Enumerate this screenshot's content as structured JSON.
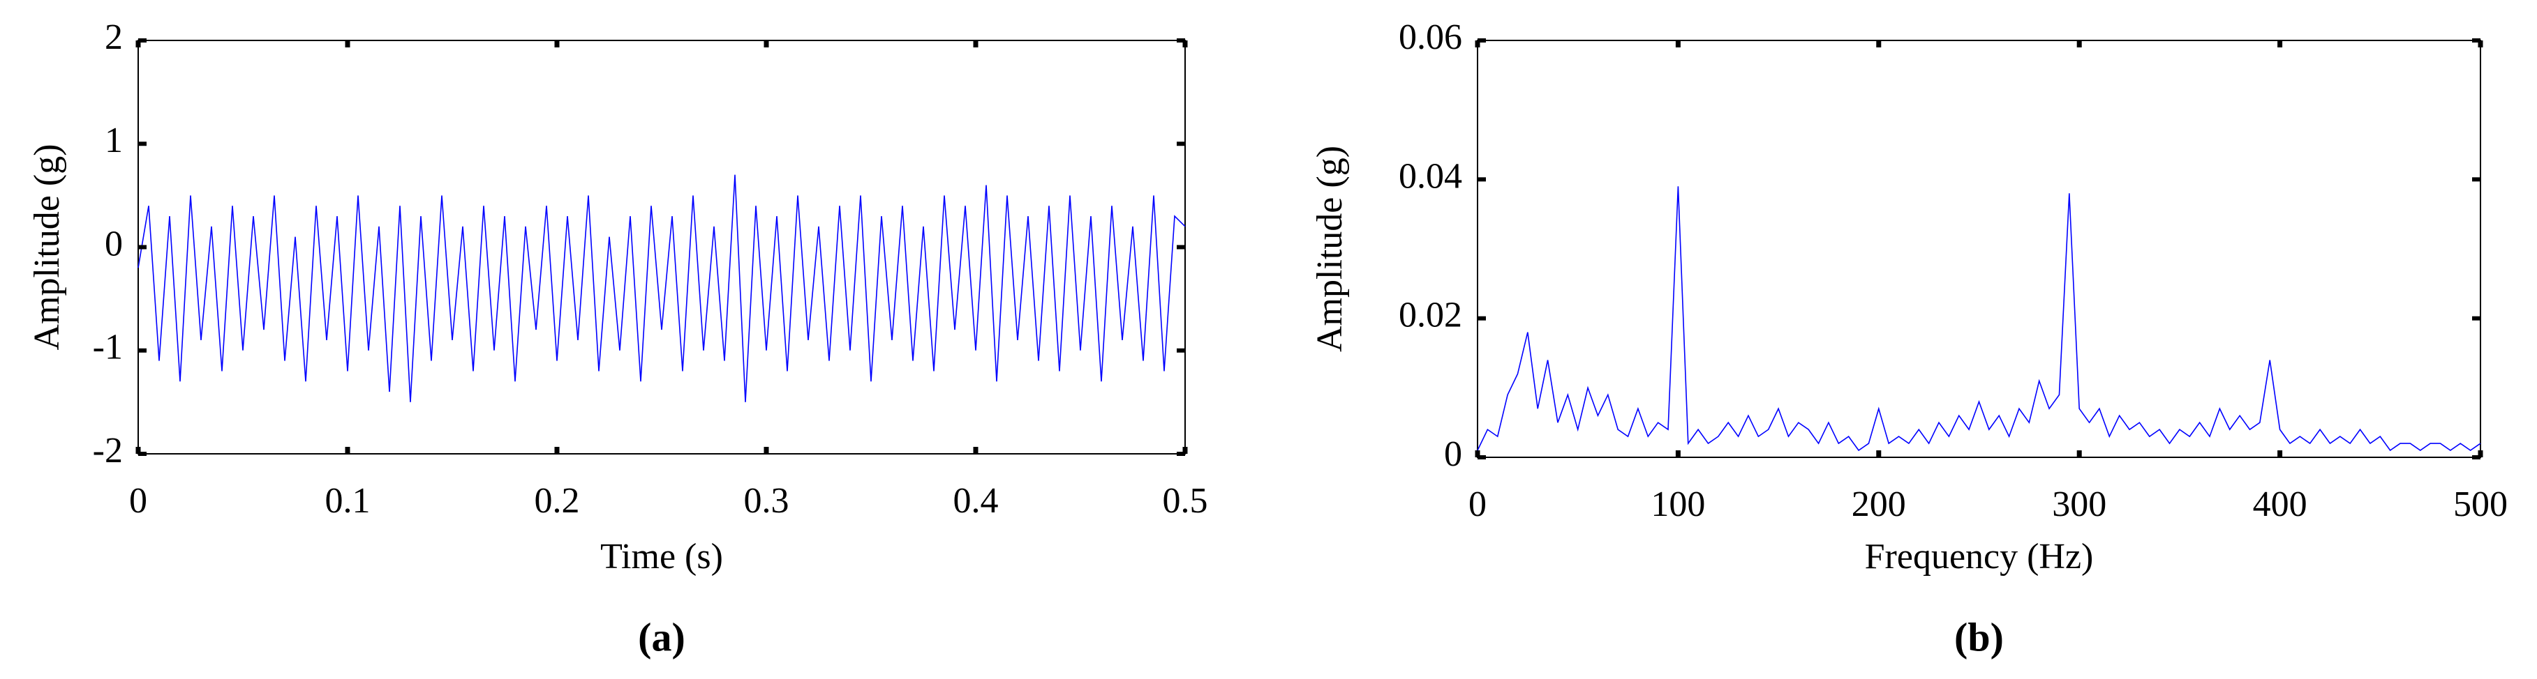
{
  "chart_data": [
    {
      "type": "line",
      "caption": "(a)",
      "xlabel": "Time (s)",
      "ylabel": "Amplitude (g)",
      "color": "#0000ff",
      "xlim": [
        0,
        0.5
      ],
      "ylim": [
        -2,
        2
      ],
      "xticks": [
        0,
        0.1,
        0.2,
        0.3,
        0.4,
        0.5
      ],
      "yticks": [
        -2,
        -1,
        0,
        1,
        2
      ],
      "grid": false,
      "x": [
        0,
        0.005,
        0.01,
        0.015,
        0.02,
        0.025,
        0.03,
        0.035,
        0.04,
        0.045,
        0.05,
        0.055,
        0.06,
        0.065,
        0.07,
        0.075,
        0.08,
        0.085,
        0.09,
        0.095,
        0.1,
        0.105,
        0.11,
        0.115,
        0.12,
        0.125,
        0.13,
        0.135,
        0.14,
        0.145,
        0.15,
        0.155,
        0.16,
        0.165,
        0.17,
        0.175,
        0.18,
        0.185,
        0.19,
        0.195,
        0.2,
        0.205,
        0.21,
        0.215,
        0.22,
        0.225,
        0.23,
        0.235,
        0.24,
        0.245,
        0.25,
        0.255,
        0.26,
        0.265,
        0.27,
        0.275,
        0.28,
        0.285,
        0.29,
        0.295,
        0.3,
        0.305,
        0.31,
        0.315,
        0.32,
        0.325,
        0.33,
        0.335,
        0.34,
        0.345,
        0.35,
        0.355,
        0.36,
        0.365,
        0.37,
        0.375,
        0.38,
        0.385,
        0.39,
        0.395,
        0.4,
        0.405,
        0.41,
        0.415,
        0.42,
        0.425,
        0.43,
        0.435,
        0.44,
        0.445,
        0.45,
        0.455,
        0.46,
        0.465,
        0.47,
        0.475,
        0.48,
        0.485,
        0.49,
        0.495,
        0.5
      ],
      "values": [
        -0.2,
        0.4,
        -1.1,
        0.3,
        -1.3,
        0.5,
        -0.9,
        0.2,
        -1.2,
        0.4,
        -1.0,
        0.3,
        -0.8,
        0.5,
        -1.1,
        0.1,
        -1.3,
        0.4,
        -0.9,
        0.3,
        -1.2,
        0.5,
        -1.0,
        0.2,
        -1.4,
        0.4,
        -1.5,
        0.3,
        -1.1,
        0.5,
        -0.9,
        0.2,
        -1.2,
        0.4,
        -1.0,
        0.3,
        -1.3,
        0.2,
        -0.8,
        0.4,
        -1.1,
        0.3,
        -0.9,
        0.5,
        -1.2,
        0.1,
        -1.0,
        0.3,
        -1.3,
        0.4,
        -0.8,
        0.3,
        -1.2,
        0.5,
        -1.0,
        0.2,
        -1.1,
        0.7,
        -1.5,
        0.4,
        -1.0,
        0.3,
        -1.2,
        0.5,
        -0.9,
        0.2,
        -1.1,
        0.4,
        -1.0,
        0.5,
        -1.3,
        0.3,
        -0.9,
        0.4,
        -1.1,
        0.2,
        -1.2,
        0.5,
        -0.8,
        0.4,
        -1.0,
        0.6,
        -1.3,
        0.5,
        -0.9,
        0.3,
        -1.1,
        0.4,
        -1.2,
        0.5,
        -1.0,
        0.3,
        -1.3,
        0.4,
        -0.9,
        0.2,
        -1.1,
        0.5,
        -1.2,
        0.3,
        0.2
      ]
    },
    {
      "type": "line",
      "caption": "(b)",
      "xlabel": "Frequency (Hz)",
      "ylabel": "Amplitude (g)",
      "color": "#0000ff",
      "xlim": [
        0,
        500
      ],
      "ylim": [
        0,
        0.06
      ],
      "xticks": [
        0,
        100,
        200,
        300,
        400,
        500
      ],
      "yticks": [
        0,
        0.02,
        0.04,
        0.06
      ],
      "grid": false,
      "x": [
        0,
        5,
        10,
        15,
        20,
        25,
        30,
        35,
        40,
        45,
        50,
        55,
        60,
        65,
        70,
        75,
        80,
        85,
        90,
        95,
        100,
        105,
        110,
        115,
        120,
        125,
        130,
        135,
        140,
        145,
        150,
        155,
        160,
        165,
        170,
        175,
        180,
        185,
        190,
        195,
        200,
        205,
        210,
        215,
        220,
        225,
        230,
        235,
        240,
        245,
        250,
        255,
        260,
        265,
        270,
        275,
        280,
        285,
        290,
        295,
        300,
        305,
        310,
        315,
        320,
        325,
        330,
        335,
        340,
        345,
        350,
        355,
        360,
        365,
        370,
        375,
        380,
        385,
        390,
        395,
        400,
        405,
        410,
        415,
        420,
        425,
        430,
        435,
        440,
        445,
        450,
        455,
        460,
        465,
        470,
        475,
        480,
        485,
        490,
        495,
        500
      ],
      "values": [
        0.001,
        0.004,
        0.003,
        0.009,
        0.012,
        0.018,
        0.007,
        0.014,
        0.005,
        0.009,
        0.004,
        0.01,
        0.006,
        0.009,
        0.004,
        0.003,
        0.007,
        0.003,
        0.005,
        0.004,
        0.039,
        0.002,
        0.004,
        0.002,
        0.003,
        0.005,
        0.003,
        0.006,
        0.003,
        0.004,
        0.007,
        0.003,
        0.005,
        0.004,
        0.002,
        0.005,
        0.002,
        0.003,
        0.001,
        0.002,
        0.007,
        0.002,
        0.003,
        0.002,
        0.004,
        0.002,
        0.005,
        0.003,
        0.006,
        0.004,
        0.008,
        0.004,
        0.006,
        0.003,
        0.007,
        0.005,
        0.011,
        0.007,
        0.009,
        0.038,
        0.007,
        0.005,
        0.007,
        0.003,
        0.006,
        0.004,
        0.005,
        0.003,
        0.004,
        0.002,
        0.004,
        0.003,
        0.005,
        0.003,
        0.007,
        0.004,
        0.006,
        0.004,
        0.005,
        0.014,
        0.004,
        0.002,
        0.003,
        0.002,
        0.004,
        0.002,
        0.003,
        0.002,
        0.004,
        0.002,
        0.003,
        0.001,
        0.002,
        0.002,
        0.001,
        0.002,
        0.002,
        0.001,
        0.002,
        0.001,
        0.002
      ]
    }
  ]
}
